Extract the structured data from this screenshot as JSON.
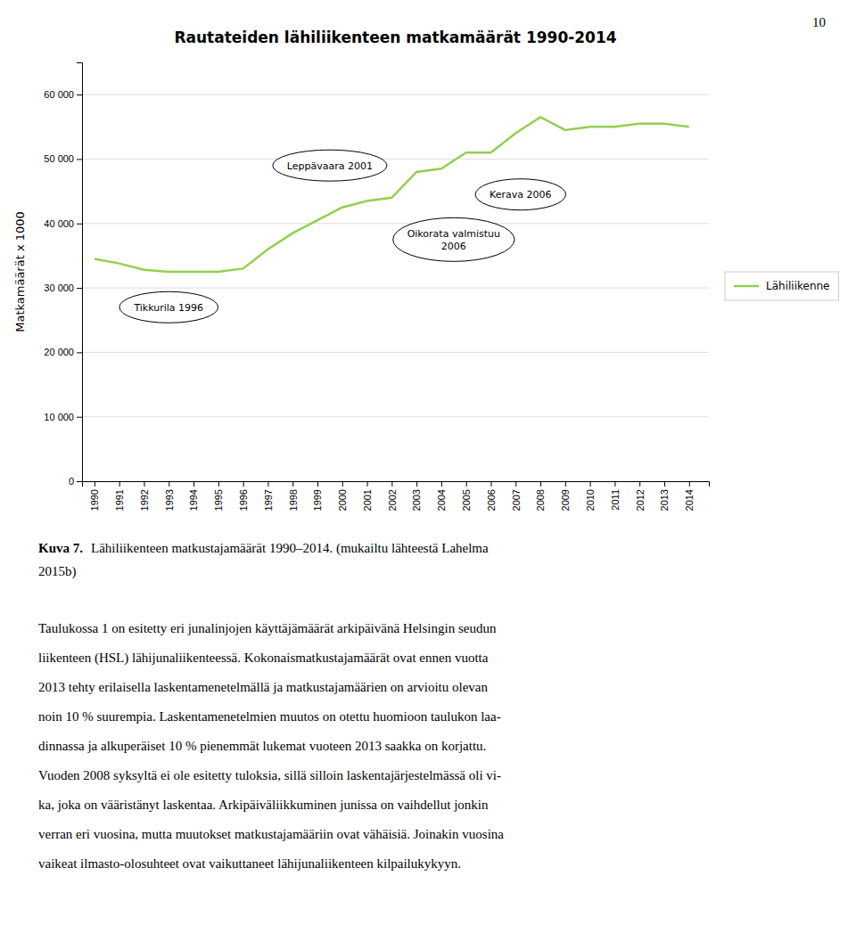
{
  "chart_data": {
    "type": "line",
    "title": "Rautateiden lähiliikenteen matkamäärät 1990-2014",
    "y_label": "Matkamäärät x 1000",
    "x": [
      1990,
      1991,
      1992,
      1993,
      1994,
      1995,
      1996,
      1997,
      1998,
      1999,
      2000,
      2001,
      2002,
      2003,
      2004,
      2005,
      2006,
      2007,
      2008,
      2009,
      2010,
      2011,
      2012,
      2013,
      2014
    ],
    "series": [
      {
        "name": "Lähiliikenne",
        "color": "#92D050",
        "values": [
          34500,
          33800,
          32800,
          32500,
          32500,
          32500,
          33000,
          36000,
          38500,
          40500,
          42500,
          43500,
          44000,
          48000,
          48500,
          51000,
          51000,
          54000,
          56500,
          54500,
          55000,
          55000,
          55500,
          55500,
          55000
        ]
      }
    ],
    "xlim": [
      1989.5,
      2014.8
    ],
    "xticks": [
      1990,
      1991,
      1992,
      1993,
      1994,
      1995,
      1996,
      1997,
      1998,
      1999,
      2000,
      2001,
      2002,
      2003,
      2004,
      2005,
      2006,
      2007,
      2008,
      2009,
      2010,
      2011,
      2012,
      2013,
      2014
    ],
    "ylim": [
      0,
      65000
    ],
    "yticks": [
      0,
      {
        "value": 10000,
        "label": "10 000"
      },
      {
        "value": 20000,
        "label": "20 000"
      },
      {
        "value": 30000,
        "label": "30 000"
      },
      {
        "value": 40000,
        "label": "40 000"
      },
      {
        "value": 50000,
        "label": "50 000"
      },
      {
        "value": 60000,
        "label": "60 000"
      }
    ],
    "grid": true,
    "legend": "right",
    "annotations": [
      {
        "text": "Tikkurila 1996",
        "x": 1993.0,
        "y": 27000
      },
      {
        "text": "Leppävaara 2001",
        "x": 1999.5,
        "y": 49000
      },
      {
        "text": "Kerava 2006",
        "x": 2007.2,
        "y": 44500
      },
      {
        "text": "Oikorata valmistuu\n2006",
        "x": 2004.5,
        "y": 37500
      }
    ]
  },
  "page_number": "10",
  "caption_label": "Kuva 7.",
  "caption_lines": [
    "Lähiliikenteen matkustajamäärät 1990–2014. (mukailtu lähteestä Lahelma",
    "2015b)"
  ],
  "body_text": [
    "Taulukossa 1 on esitetty eri junalinjojen käyttäjämäärät arkipäivänä Helsingin seudun",
    "liikenteen (HSL) lähijunaliikenteessä. Kokonaismatkustajamäärät ovat ennen vuotta",
    "2013 tehty erilaisella laskentamenetelmällä ja matkustajamäärien on arvioitu olevan",
    "noin 10 % suurempia. Laskentamenetelmien muutos on otettu huomioon taulukon laa-",
    "dinnassa ja alkuperäiset 10 % pienemmät lukemat vuoteen 2013 saakka on korjattu.",
    "Vuoden 2008 syksyltä ei ole esitetty tuloksia, sillä silloin laskentajärjestelmässä oli vi-",
    "ka, joka on vääristänyt laskentaa. Arkipäiväliikkuminen junissa on vaihdellut jonkin",
    "verran eri vuosina, mutta muutokset matkustajamääriin ovat vähäisiä. Joinakin vuosina",
    "vaikeat ilmasto-olosuhteet ovat vaikuttaneet lähijunaliikenteen kilpailukykyyn."
  ]
}
